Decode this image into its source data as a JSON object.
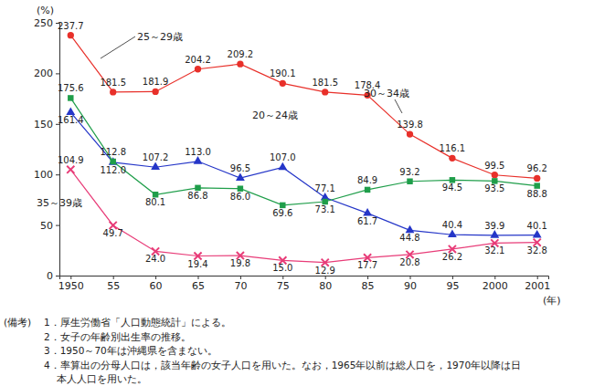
{
  "chart_data": {
    "type": "line",
    "x_label": "(年)",
    "y_label": "(%)",
    "categories": [
      "1950",
      "55",
      "60",
      "65",
      "70",
      "75",
      "80",
      "85",
      "90",
      "95",
      "2000",
      "2001"
    ],
    "ylim": [
      0,
      250
    ],
    "yticks": [
      0,
      50,
      100,
      150,
      200,
      250
    ],
    "grid": false,
    "data_labels": true,
    "series": [
      {
        "name": "25～29歳",
        "color": "#e8302a",
        "marker": "circle",
        "line_style": "solid",
        "values": [
          237.7,
          181.5,
          181.9,
          204.2,
          209.2,
          190.1,
          181.5,
          178.4,
          139.8,
          116.1,
          99.5,
          96.2
        ],
        "value_labels": [
          "237.7",
          "181.5",
          "181.9",
          "204.2",
          "209.2",
          "190.1",
          "181.5",
          "178.4",
          "139.8",
          "116.1",
          "99.5",
          "96.2"
        ]
      },
      {
        "name": "20～24歳",
        "color": "#2536c8",
        "marker": "triangle",
        "line_style": "solid",
        "values": [
          161.4,
          112.0,
          107.2,
          113.0,
          96.5,
          107.0,
          77.1,
          61.7,
          44.8,
          40.4,
          39.9,
          40.1
        ],
        "value_labels": [
          "161.4",
          "112.0",
          "107.2",
          "113.0",
          "96.5",
          "107.0",
          "77.1",
          "61.7",
          "44.8",
          "40.4",
          "39.9",
          "40.1"
        ]
      },
      {
        "name": "30～34歳",
        "color": "#1f9e4a",
        "marker": "square",
        "line_style": "solid",
        "values": [
          175.6,
          112.8,
          80.1,
          86.8,
          86.0,
          69.6,
          73.1,
          84.9,
          93.2,
          94.5,
          93.5,
          88.8
        ],
        "value_labels": [
          "175.6",
          "112.8",
          "80.1",
          "86.8",
          "86.0",
          "69.6",
          "73.1",
          "84.9",
          "93.2",
          "94.5",
          "93.5",
          "88.8"
        ]
      },
      {
        "name": "35～39歳",
        "color": "#e83c78",
        "marker": "x",
        "line_style": "solid",
        "values": [
          104.9,
          49.7,
          24.0,
          19.4,
          19.8,
          15.0,
          12.9,
          17.7,
          20.8,
          26.2,
          32.1,
          32.8
        ],
        "value_labels": [
          "104.9",
          "49.7",
          "24.0",
          "19.4",
          "19.8",
          "15.0",
          "12.9",
          "17.7",
          "20.8",
          "26.2",
          "32.1",
          "32.8"
        ]
      }
    ],
    "notes": {
      "heading": "(備考)",
      "items": [
        [
          "1．厚生労働省「人口動態統計」による。"
        ],
        [
          "2．女子の年齢別出生率の推移。"
        ],
        [
          "3．1950～70年は沖縄県を含まない。"
        ],
        [
          "4．率算出の分母人口は，該当年齢の女子人口を用いた。なお，1965年以前は総人口を，1970年以降は日",
          "本人人口を用いた。"
        ]
      ]
    }
  }
}
